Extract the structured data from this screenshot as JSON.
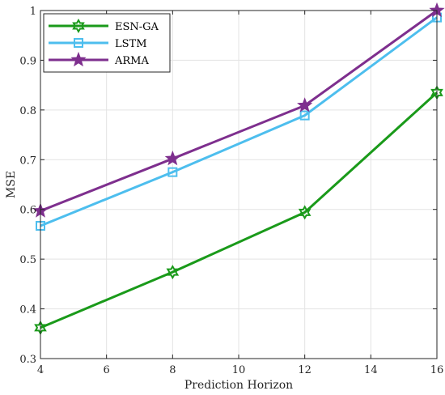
{
  "chart_data": {
    "type": "line",
    "xlabel": "Prediction Horizon",
    "ylabel": "MSE",
    "xlim": [
      4,
      16
    ],
    "ylim": [
      0.3,
      1.0
    ],
    "xticks": [
      "4",
      "6",
      "8",
      "10",
      "12",
      "14",
      "16"
    ],
    "yticks": [
      "0.3",
      "0.4",
      "0.5",
      "0.6",
      "0.7",
      "0.8",
      "0.9",
      "1"
    ],
    "grid": true,
    "legend_position": "top-left",
    "series": [
      {
        "name": "ESN-GA",
        "marker": "hexagram",
        "color": "#1a9a1a",
        "x": [
          4,
          8,
          12,
          16
        ],
        "y": [
          0.362,
          0.474,
          0.594,
          0.835
        ]
      },
      {
        "name": "LSTM",
        "marker": "square",
        "color": "#4dbeee",
        "x": [
          4,
          8,
          12,
          16
        ],
        "y": [
          0.567,
          0.675,
          0.789,
          0.986
        ]
      },
      {
        "name": "ARMA",
        "marker": "pentagram",
        "color": "#7e2f8e",
        "x": [
          4,
          8,
          12,
          16
        ],
        "y": [
          0.597,
          0.702,
          0.809,
          1.0
        ]
      }
    ]
  }
}
